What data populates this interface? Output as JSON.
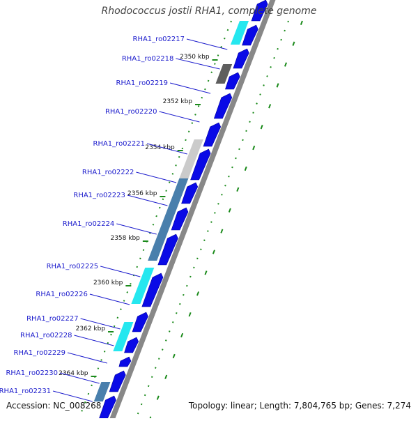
{
  "title": "Rhodococcus jostii RHA1, complete genome",
  "accession_text": "Accession: NC_008268",
  "summary_text": "Topology: linear; Length: 7,804,765 bp; Genes: 7,274",
  "colors": {
    "forward_gene": "#0a0ae6",
    "gene_label": "#1a1acc",
    "backbone": "#888888",
    "tick": "#1a8a1a",
    "cyan_feature": "#19e6ee",
    "steel_feature": "#3f78a8",
    "gray_feature": "#c8c8c8",
    "dark_feature": "#555555"
  },
  "scale_labels": [
    "2350 kbp",
    "2352 kbp",
    "2354 kbp",
    "2356 kbp",
    "2358 kbp",
    "2360 kbp",
    "2362 kbp",
    "2364 kbp"
  ],
  "gene_labels": [
    "RHA1_ro02217",
    "RHA1_ro02218",
    "RHA1_ro02219",
    "RHA1_ro02220",
    "RHA1_ro02221",
    "RHA1_ro02222",
    "RHA1_ro02223",
    "RHA1_ro02224",
    "RHA1_ro02225",
    "RHA1_ro02226",
    "RHA1_ro02227",
    "RHA1_ro02228",
    "RHA1_ro02229",
    "RHA1_ro02230",
    "RHA1_ro02231"
  ]
}
